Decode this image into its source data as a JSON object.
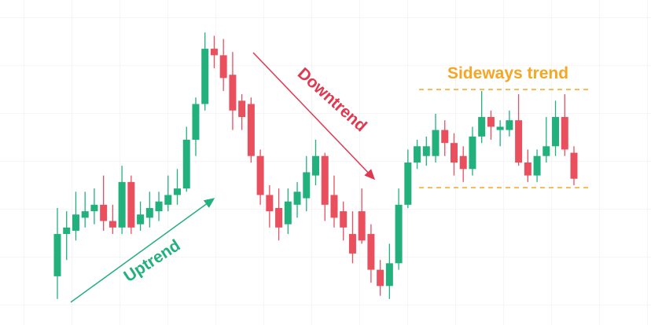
{
  "chart_data": {
    "type": "candlestick",
    "ylim": [
      0,
      100
    ],
    "grid": true,
    "up_color": "#22b07d",
    "down_color": "#ea4f5e",
    "series": {
      "open": [
        15,
        28,
        29,
        33,
        35,
        37,
        32,
        30,
        44,
        31,
        33,
        35,
        37,
        40,
        42,
        57,
        68,
        85,
        83,
        77,
        69,
        68,
        52,
        40,
        36,
        31,
        37,
        39,
        46,
        52,
        40,
        35,
        28,
        35,
        28,
        17,
        12,
        19,
        37,
        50,
        52,
        52,
        60,
        56,
        52,
        48,
        58,
        64,
        60,
        60,
        63,
        50,
        46,
        52,
        55,
        64,
        53
      ],
      "high": [
        36,
        35,
        41,
        41,
        42,
        46,
        37,
        49,
        46,
        38,
        41,
        41,
        46,
        48,
        61,
        70,
        90,
        89,
        88,
        84,
        71,
        70,
        54,
        43,
        42,
        42,
        44,
        52,
        57,
        53,
        46,
        38,
        35,
        42,
        31,
        20,
        25,
        42,
        54,
        57,
        58,
        65,
        63,
        59,
        55,
        61,
        72,
        66,
        63,
        66,
        71,
        54,
        54,
        64,
        69,
        71,
        55
      ],
      "low": [
        8,
        20,
        26,
        30,
        31,
        29,
        28,
        28,
        28,
        29,
        30,
        32,
        35,
        37,
        41,
        52,
        66,
        79,
        72,
        60,
        60,
        50,
        37,
        30,
        26,
        28,
        33,
        35,
        43,
        32,
        30,
        26,
        19,
        25,
        13,
        9,
        8,
        17,
        36,
        48,
        49,
        50,
        52,
        46,
        44,
        46,
        56,
        57,
        55,
        58,
        49,
        44,
        44,
        50,
        52,
        52,
        43
      ],
      "close": [
        28,
        30,
        34,
        35,
        37,
        32,
        30,
        44,
        30,
        34,
        36,
        38,
        40,
        42,
        57,
        68,
        85,
        83,
        76,
        66,
        64,
        52,
        40,
        35,
        30,
        38,
        41,
        47,
        52,
        37,
        33,
        30,
        22,
        26,
        17,
        12,
        19,
        37,
        50,
        55,
        55,
        60,
        56,
        50,
        48,
        58,
        64,
        61,
        61,
        63,
        50,
        46,
        52,
        55,
        64,
        54,
        45
      ]
    },
    "annotations": [
      {
        "text": "Uptrend",
        "color": "#22b07d"
      },
      {
        "text": "Downtrend",
        "color": "#e0384f"
      },
      {
        "text": "Sideways trend",
        "color": "#f5a623"
      }
    ]
  }
}
